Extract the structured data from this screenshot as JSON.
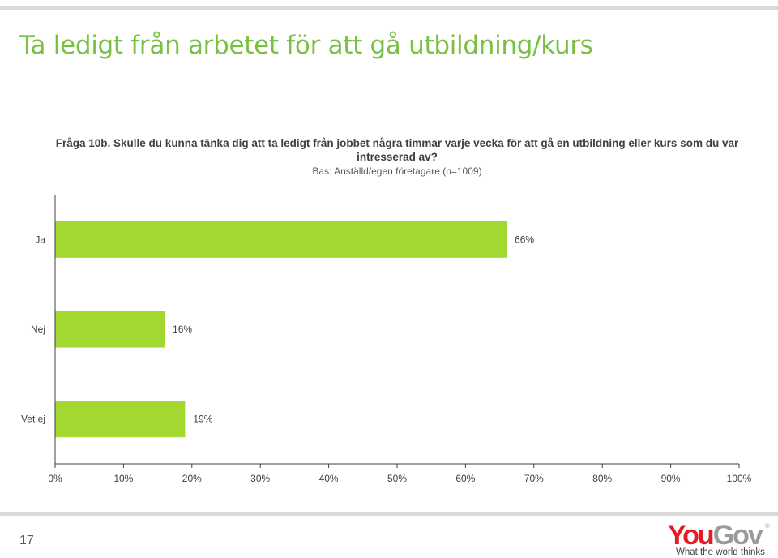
{
  "slide": {
    "title": "Ta ledigt från arbetet för att gå utbildning/kurs",
    "question": "Fråga 10b. Skulle du kunna tänka dig att ta ledigt från jobbet några timmar varje vecka för att gå en utbildning eller kurs som du var intresserad av?",
    "base": "Bas: Anställd/egen företagare (n=1009)",
    "page_number": "17"
  },
  "logo": {
    "you": "You",
    "gov": "Gov",
    "registered": "®",
    "tagline": "What the world thinks"
  },
  "colors": {
    "title": "#7ac143",
    "bar": "#a2d830",
    "logo_red": "#e31b23",
    "logo_gray": "#9a9a9a"
  },
  "chart_data": {
    "type": "bar",
    "orientation": "horizontal",
    "categories": [
      "Ja",
      "Nej",
      "Vet ej"
    ],
    "values": [
      66,
      16,
      19
    ],
    "value_labels": [
      "66%",
      "16%",
      "19%"
    ],
    "xlim": [
      0,
      100
    ],
    "x_ticks": [
      "0%",
      "10%",
      "20%",
      "30%",
      "40%",
      "50%",
      "60%",
      "70%",
      "80%",
      "90%",
      "100%"
    ],
    "grid": false,
    "legend": "none"
  }
}
